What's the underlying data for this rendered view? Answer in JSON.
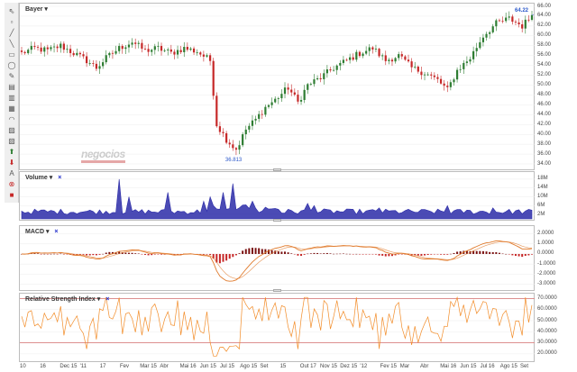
{
  "toolbar": {
    "tools": [
      {
        "name": "cursor-icon",
        "glyph": "⇖"
      },
      {
        "name": "pan-icon",
        "glyph": "▫"
      },
      {
        "name": "line-icon",
        "glyph": "╱"
      },
      {
        "name": "ray-icon",
        "glyph": "╲"
      },
      {
        "name": "rectangle-icon",
        "glyph": "▭"
      },
      {
        "name": "ellipse-icon",
        "glyph": "◯"
      },
      {
        "name": "pencil-icon",
        "glyph": "✎"
      },
      {
        "name": "channel-icon",
        "glyph": "▤"
      },
      {
        "name": "fibonacci-icon",
        "glyph": "▥"
      },
      {
        "name": "grid-icon",
        "glyph": "▦"
      },
      {
        "name": "arc-icon",
        "glyph": "◠"
      },
      {
        "name": "brush-icon",
        "glyph": "▨"
      },
      {
        "name": "eraser-icon",
        "glyph": "▧"
      },
      {
        "name": "arrow-up-icon",
        "glyph": "⬆"
      },
      {
        "name": "arrow-down-icon",
        "glyph": "⬇"
      },
      {
        "name": "text-icon",
        "glyph": "A"
      },
      {
        "name": "delete-icon",
        "glyph": "⊗"
      },
      {
        "name": "color-icon",
        "glyph": "■"
      }
    ]
  },
  "colors": {
    "up": "#2e7d32",
    "down": "#c62828",
    "volume": "#2c2ca8",
    "macd_line": "#e07a2b",
    "hist_up": "#7a1010",
    "rsi_line": "#f28c28",
    "rsi_band": "#d98080",
    "accent": "#2a57c9"
  },
  "price_panel": {
    "title": "Bayer",
    "dropdown_glyph": "▾",
    "last_value_label": "64.22",
    "min_value_label": "36.813",
    "y_ticks": [
      "66.00",
      "64.00",
      "62.00",
      "60.00",
      "58.00",
      "56.00",
      "54.00",
      "52.00",
      "50.00",
      "48.00",
      "46.00",
      "44.00",
      "42.00",
      "40.00",
      "38.00",
      "36.00",
      "34.00"
    ],
    "watermark": "negocios"
  },
  "volume_panel": {
    "title": "Volume",
    "dropdown_glyph": "▾",
    "close_glyph": "×",
    "y_ticks": [
      "18M",
      "14M",
      "10M",
      "6M",
      "2M"
    ]
  },
  "macd_panel": {
    "title": "MACD",
    "dropdown_glyph": "▾",
    "close_glyph": "×",
    "y_ticks": [
      "2.0000",
      "1.0000",
      "0.0000",
      "-1.0000",
      "-2.0000",
      "-3.0000"
    ]
  },
  "rsi_panel": {
    "title": "Relative Strength Index",
    "dropdown_glyph": "▾",
    "close_glyph": "×",
    "y_ticks": [
      "70.0000",
      "60.0000",
      "50.0000",
      "40.0000",
      "30.0000",
      "20.0000"
    ]
  },
  "x_axis": [
    "10",
    "16",
    "Dec 15",
    "'11",
    "17",
    "Fev",
    "Mar 15",
    "Abr",
    "Mai 16",
    "Jun 15",
    "Jul 15",
    "Ago 15",
    "Set",
    "15",
    "Out 17",
    "Nov 15",
    "Dez 15",
    "'12",
    "Fev 15",
    "Mar",
    "Abr",
    "Mai 16",
    "Jun 15",
    "Jul 16",
    "Ago 15",
    "Set"
  ],
  "chart_data": [
    {
      "type": "line",
      "title": "Bayer",
      "subtype": "candlestick",
      "ylim": [
        34,
        66
      ],
      "anchors": [
        [
          0,
          56.5
        ],
        [
          4,
          57.5
        ],
        [
          8,
          57
        ],
        [
          12,
          58
        ],
        [
          16,
          56.5
        ],
        [
          20,
          55
        ],
        [
          23,
          53.5
        ],
        [
          26,
          55.5
        ],
        [
          30,
          57.5
        ],
        [
          34,
          58.8
        ],
        [
          38,
          57
        ],
        [
          42,
          57.5
        ],
        [
          46,
          56.5
        ],
        [
          50,
          57.5
        ],
        [
          54,
          56.8
        ],
        [
          58,
          55
        ],
        [
          60,
          42
        ],
        [
          63,
          39
        ],
        [
          66,
          36.8
        ],
        [
          69,
          41
        ],
        [
          72,
          43
        ],
        [
          75,
          45.5
        ],
        [
          78,
          47
        ],
        [
          82,
          49.5
        ],
        [
          85,
          46.5
        ],
        [
          88,
          50
        ],
        [
          92,
          51.5
        ],
        [
          96,
          53.5
        ],
        [
          100,
          55
        ],
        [
          104,
          56.5
        ],
        [
          108,
          57.5
        ],
        [
          112,
          55
        ],
        [
          116,
          56
        ],
        [
          120,
          53.5
        ],
        [
          124,
          52.5
        ],
        [
          128,
          51
        ],
        [
          131,
          49
        ],
        [
          134,
          53
        ],
        [
          138,
          55.5
        ],
        [
          142,
          60
        ],
        [
          146,
          62.5
        ],
        [
          150,
          63.5
        ],
        [
          154,
          62
        ],
        [
          157,
          64.22
        ]
      ],
      "markers": {
        "min": 36.813,
        "last": 64.22
      }
    },
    {
      "type": "area",
      "title": "Volume",
      "ylim": [
        0,
        20
      ],
      "unit": "M"
    },
    {
      "type": "line",
      "title": "MACD",
      "ylim": [
        -3.4,
        2.5
      ],
      "series": [
        {
          "values_source": "MACD line"
        },
        {
          "values_source": "signal line"
        },
        {
          "values_source": "histogram"
        }
      ]
    },
    {
      "type": "line",
      "title": "Relative Strength Index",
      "ylim": [
        15,
        72
      ],
      "bands": [
        30,
        70
      ]
    }
  ]
}
